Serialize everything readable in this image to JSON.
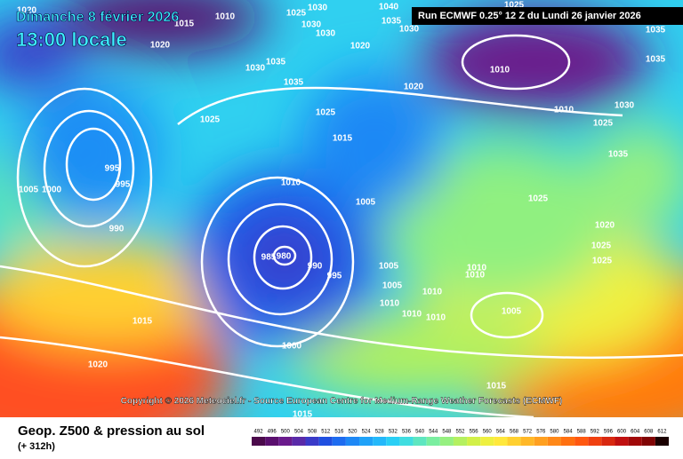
{
  "header": {
    "date": "Dimanche 8 février 2026",
    "time": "13:00 locale",
    "run": "Run ECMWF 0.25° 12 Z du Lundi 26 janvier 2026"
  },
  "map": {
    "isobar_labels": [
      1020,
      1015,
      1010,
      1020,
      1025,
      1030,
      1040,
      1030,
      1030,
      1035,
      1030,
      1025,
      1020,
      1035,
      1035,
      1030,
      1035,
      1035,
      1020,
      1010,
      1010,
      1030,
      1025,
      1025,
      1015,
      1025,
      1035,
      995,
      995,
      1005,
      1000,
      1010,
      1005,
      1025,
      990,
      1020,
      1025,
      1025,
      985,
      980,
      990,
      995,
      1005,
      1010,
      1010,
      1005,
      1010,
      1010,
      1010,
      1010,
      1005,
      1015,
      1000,
      1020,
      1015,
      1015
    ]
  },
  "copyright": "Copyright © 2026 Meteociel.fr - Source European Centre for Medium-Range Weather Forecasts (ECMWF)",
  "footer": {
    "title": "Geop. Z500 & pression au sol",
    "lead": "(+ 312h)",
    "scale": {
      "values": [
        492,
        496,
        500,
        504,
        508,
        512,
        516,
        520,
        524,
        528,
        532,
        536,
        540,
        544,
        548,
        552,
        556,
        560,
        564,
        568,
        572,
        576,
        580,
        584,
        588,
        592,
        596,
        600,
        604,
        608,
        612
      ],
      "colors": [
        "#4b0a4b",
        "#5a0f6e",
        "#6a1a8c",
        "#5a2aa8",
        "#3a3ac8",
        "#1f4fe0",
        "#1e6cf0",
        "#1e88f5",
        "#1fa2f8",
        "#24b8fa",
        "#2acff5",
        "#40dde0",
        "#5ee6c0",
        "#7aeea0",
        "#96f080",
        "#b4f060",
        "#d2f048",
        "#eef040",
        "#ffe83c",
        "#ffd030",
        "#ffb828",
        "#ffa020",
        "#ff8818",
        "#ff7010",
        "#ff5810",
        "#f04010",
        "#d82810",
        "#c01010",
        "#a00808",
        "#800404",
        "#1a0000"
      ]
    }
  }
}
